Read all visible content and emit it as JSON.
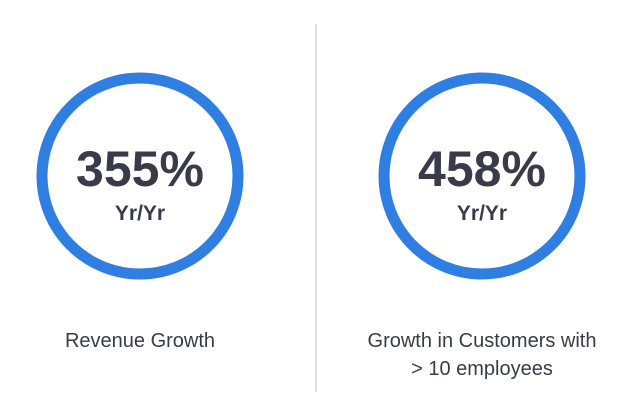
{
  "kpis": [
    {
      "value": "355%",
      "unit": "Yr/Yr",
      "caption": [
        "Revenue Growth"
      ]
    },
    {
      "value": "458%",
      "unit": "Yr/Yr",
      "caption": [
        "Growth in Customers with",
        "> 10 employees"
      ]
    }
  ]
}
